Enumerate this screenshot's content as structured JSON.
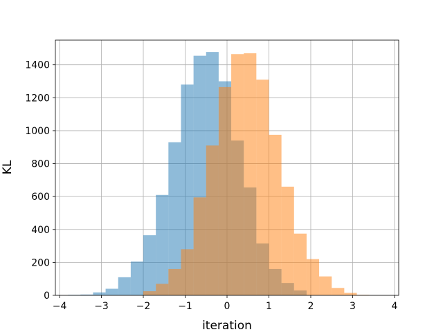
{
  "chart_data": {
    "type": "bar",
    "title": "",
    "xlabel": "iteration",
    "ylabel": "KL",
    "xlim": [
      -4.1,
      4.1
    ],
    "ylim": [
      0,
      1550
    ],
    "xticks": [
      -4,
      -3,
      -2,
      -1,
      0,
      1,
      2,
      3,
      4
    ],
    "xtick_labels": [
      "−4",
      "−3",
      "−2",
      "−1",
      "0",
      "1",
      "2",
      "3",
      "4"
    ],
    "yticks": [
      0,
      200,
      400,
      600,
      800,
      1000,
      1200,
      1400
    ],
    "ytick_labels": [
      "0",
      "200",
      "400",
      "600",
      "800",
      "1000",
      "1200",
      "1400"
    ],
    "grid": true,
    "legend": "none",
    "series": [
      {
        "color": "#1f77b4",
        "opacity": 0.5,
        "bin_edges": [
          -3.8,
          -3.5,
          -3.2,
          -2.9,
          -2.6,
          -2.3,
          -2.0,
          -1.7,
          -1.4,
          -1.1,
          -0.8,
          -0.5,
          -0.2,
          0.1,
          0.4,
          0.7,
          1.0,
          1.3,
          1.6,
          1.9
        ],
        "counts": [
          3,
          5,
          18,
          40,
          110,
          205,
          365,
          610,
          930,
          1280,
          1455,
          1478,
          1300,
          940,
          655,
          315,
          160,
          75,
          30
        ]
      },
      {
        "color": "#ff7f0e",
        "opacity": 0.5,
        "bin_edges": [
          -2.0,
          -1.7,
          -1.4,
          -1.1,
          -0.8,
          -0.5,
          -0.2,
          0.1,
          0.4,
          0.7,
          1.0,
          1.3,
          1.6,
          1.9,
          2.2,
          2.5,
          2.8,
          3.1,
          3.4
        ],
        "counts": [
          25,
          70,
          160,
          280,
          595,
          910,
          1265,
          1465,
          1470,
          1310,
          975,
          660,
          375,
          220,
          115,
          45,
          15,
          3
        ]
      }
    ]
  }
}
